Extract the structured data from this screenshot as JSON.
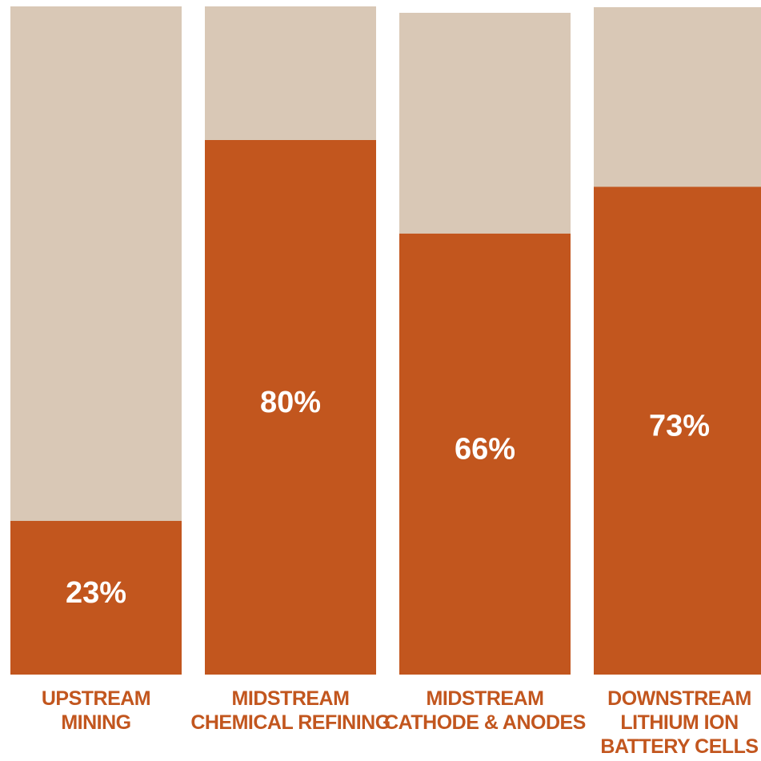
{
  "chart_data": {
    "type": "bar",
    "stacked": true,
    "categories": [
      [
        "UPSTREAM",
        "MINING"
      ],
      [
        "MIDSTREAM",
        "CHEMICAL REFINING"
      ],
      [
        "MIDSTREAM",
        "CATHODE & ANODES"
      ],
      [
        "DOWNSTREAM",
        "LITHIUM ION",
        "BATTERY CELLS"
      ]
    ],
    "values": [
      23,
      80,
      66,
      73
    ],
    "value_labels": [
      "23%",
      "80%",
      "66%",
      "73%"
    ],
    "ylim": [
      0,
      100
    ],
    "grid": false,
    "legend": "none",
    "colors": {
      "share": "#c2561e",
      "remainder": "#d9c8b6",
      "label_text": "#c2561e",
      "value_text": "#ffffff",
      "background": "#ffffff"
    }
  }
}
